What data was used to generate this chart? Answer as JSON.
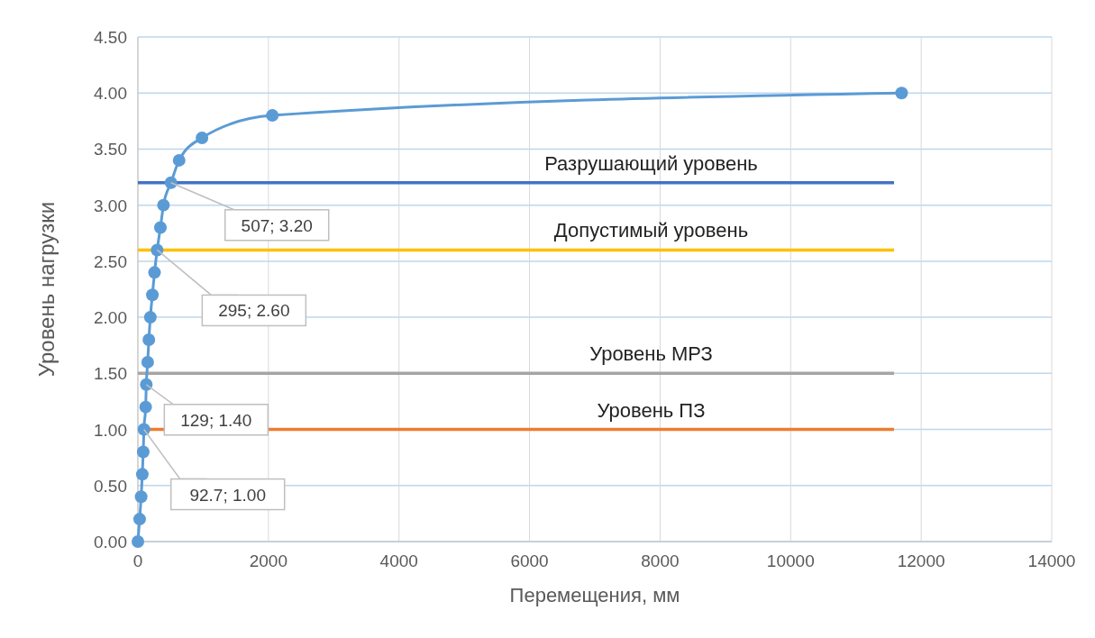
{
  "chart_data": {
    "type": "line",
    "xlabel": "Перемещения, мм",
    "ylabel": "Уровень нагрузки",
    "x": [
      0,
      27,
      50,
      68,
      82,
      92.7,
      119,
      129,
      150,
      168,
      191,
      222,
      255,
      295,
      345,
      392,
      507,
      632,
      982,
      2060,
      11700
    ],
    "series": [
      {
        "color": "#5b9bd5",
        "values": [
          0,
          0.2,
          0.4,
          0.6,
          0.8,
          1.0,
          1.2,
          1.4,
          1.6,
          1.8,
          2.0,
          2.2,
          2.4,
          2.6,
          2.8,
          3.0,
          3.2,
          3.4,
          3.6,
          3.8,
          4.0
        ]
      }
    ],
    "xlim": [
      0,
      14000
    ],
    "xticks": [
      0,
      2000,
      4000,
      6000,
      8000,
      10000,
      12000,
      14000
    ],
    "ylim": [
      0,
      4.5
    ],
    "yticks": [
      {
        "value": 0,
        "label": "0.00"
      },
      {
        "value": 0.5,
        "label": "0.50"
      },
      {
        "value": 1,
        "label": "1.00"
      },
      {
        "value": 1.5,
        "label": "1.50"
      },
      {
        "value": 2,
        "label": "2.00"
      },
      {
        "value": 2.5,
        "label": "2.50"
      },
      {
        "value": 3,
        "label": "3.00"
      },
      {
        "value": 3.5,
        "label": "3.50"
      },
      {
        "value": 4,
        "label": "4.00"
      },
      {
        "value": 4.5,
        "label": "4.50"
      }
    ],
    "grid": true,
    "marker": "circle",
    "line_style": "solid",
    "ref_lines": [
      {
        "axis": "y",
        "value": 3.2,
        "label": "Разрушающий уровень",
        "color": "#4472c4"
      },
      {
        "axis": "y",
        "value": 2.6,
        "label": "Допустимый уровень",
        "color": "#ffc000"
      },
      {
        "axis": "y",
        "value": 1.5,
        "label": "Уровень МРЗ",
        "color": "#a5a5a5"
      },
      {
        "axis": "y",
        "value": 1.0,
        "label": "Уровень ПЗ",
        "color": "#ed7d31"
      }
    ],
    "annotations": [
      {
        "text": "507; 3.20",
        "x": 507,
        "y": 3.2
      },
      {
        "text": "295; 2.60",
        "x": 295,
        "y": 2.6
      },
      {
        "text": "129; 1.40",
        "x": 129,
        "y": 1.4
      },
      {
        "text": "92.7; 1.00",
        "x": 92.7,
        "y": 1.0
      }
    ]
  }
}
